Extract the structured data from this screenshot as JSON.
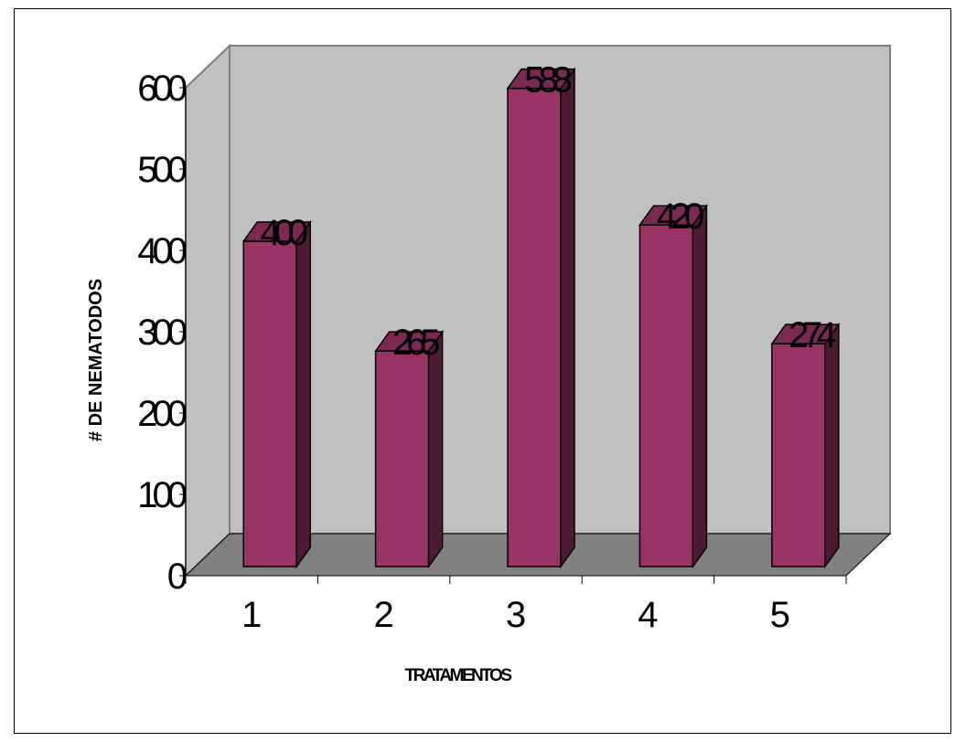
{
  "chart_data": {
    "type": "bar",
    "categories": [
      "1",
      "2",
      "3",
      "4",
      "5"
    ],
    "values": [
      400,
      265,
      588,
      420,
      274
    ],
    "title": "",
    "xlabel": "TRATAMENTOS",
    "ylabel": "# DE NEMATODOS",
    "ylim": [
      0,
      600
    ],
    "yticks": [
      0,
      100,
      200,
      300,
      400,
      500,
      600
    ],
    "legend": "none",
    "grid": false,
    "colors": {
      "bar_front": "#993366",
      "bar_side": "#4d1a33",
      "bar_top": "#7a2952",
      "back_wall": "#c0c0c0",
      "floor": "#808080",
      "outline": "#000000",
      "wall_border": "#808080"
    }
  }
}
